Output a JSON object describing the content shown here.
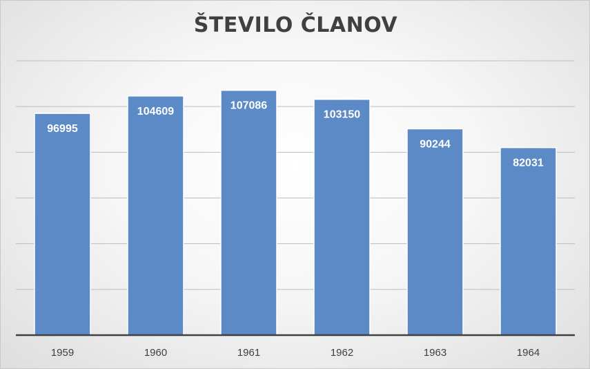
{
  "chart_data": {
    "type": "bar",
    "title": "ŠTEVILO ČLANOV",
    "categories": [
      "1959",
      "1960",
      "1961",
      "1962",
      "1963",
      "1964"
    ],
    "values": [
      96995,
      104609,
      107086,
      103150,
      90244,
      82031
    ],
    "data_labels": [
      "96995",
      "104609",
      "107086",
      "103150",
      "90244",
      "82031"
    ],
    "ylim": [
      0,
      120000
    ],
    "y_gridlines": [
      20000,
      40000,
      60000,
      80000,
      100000,
      120000
    ],
    "grid": true,
    "legend": "none",
    "bar_color": "#5b8ac6",
    "bar_border_color": "#ffffff",
    "label_color": "#ffffff",
    "axis_color": "#404040",
    "grid_color": "#bdbdbd"
  }
}
